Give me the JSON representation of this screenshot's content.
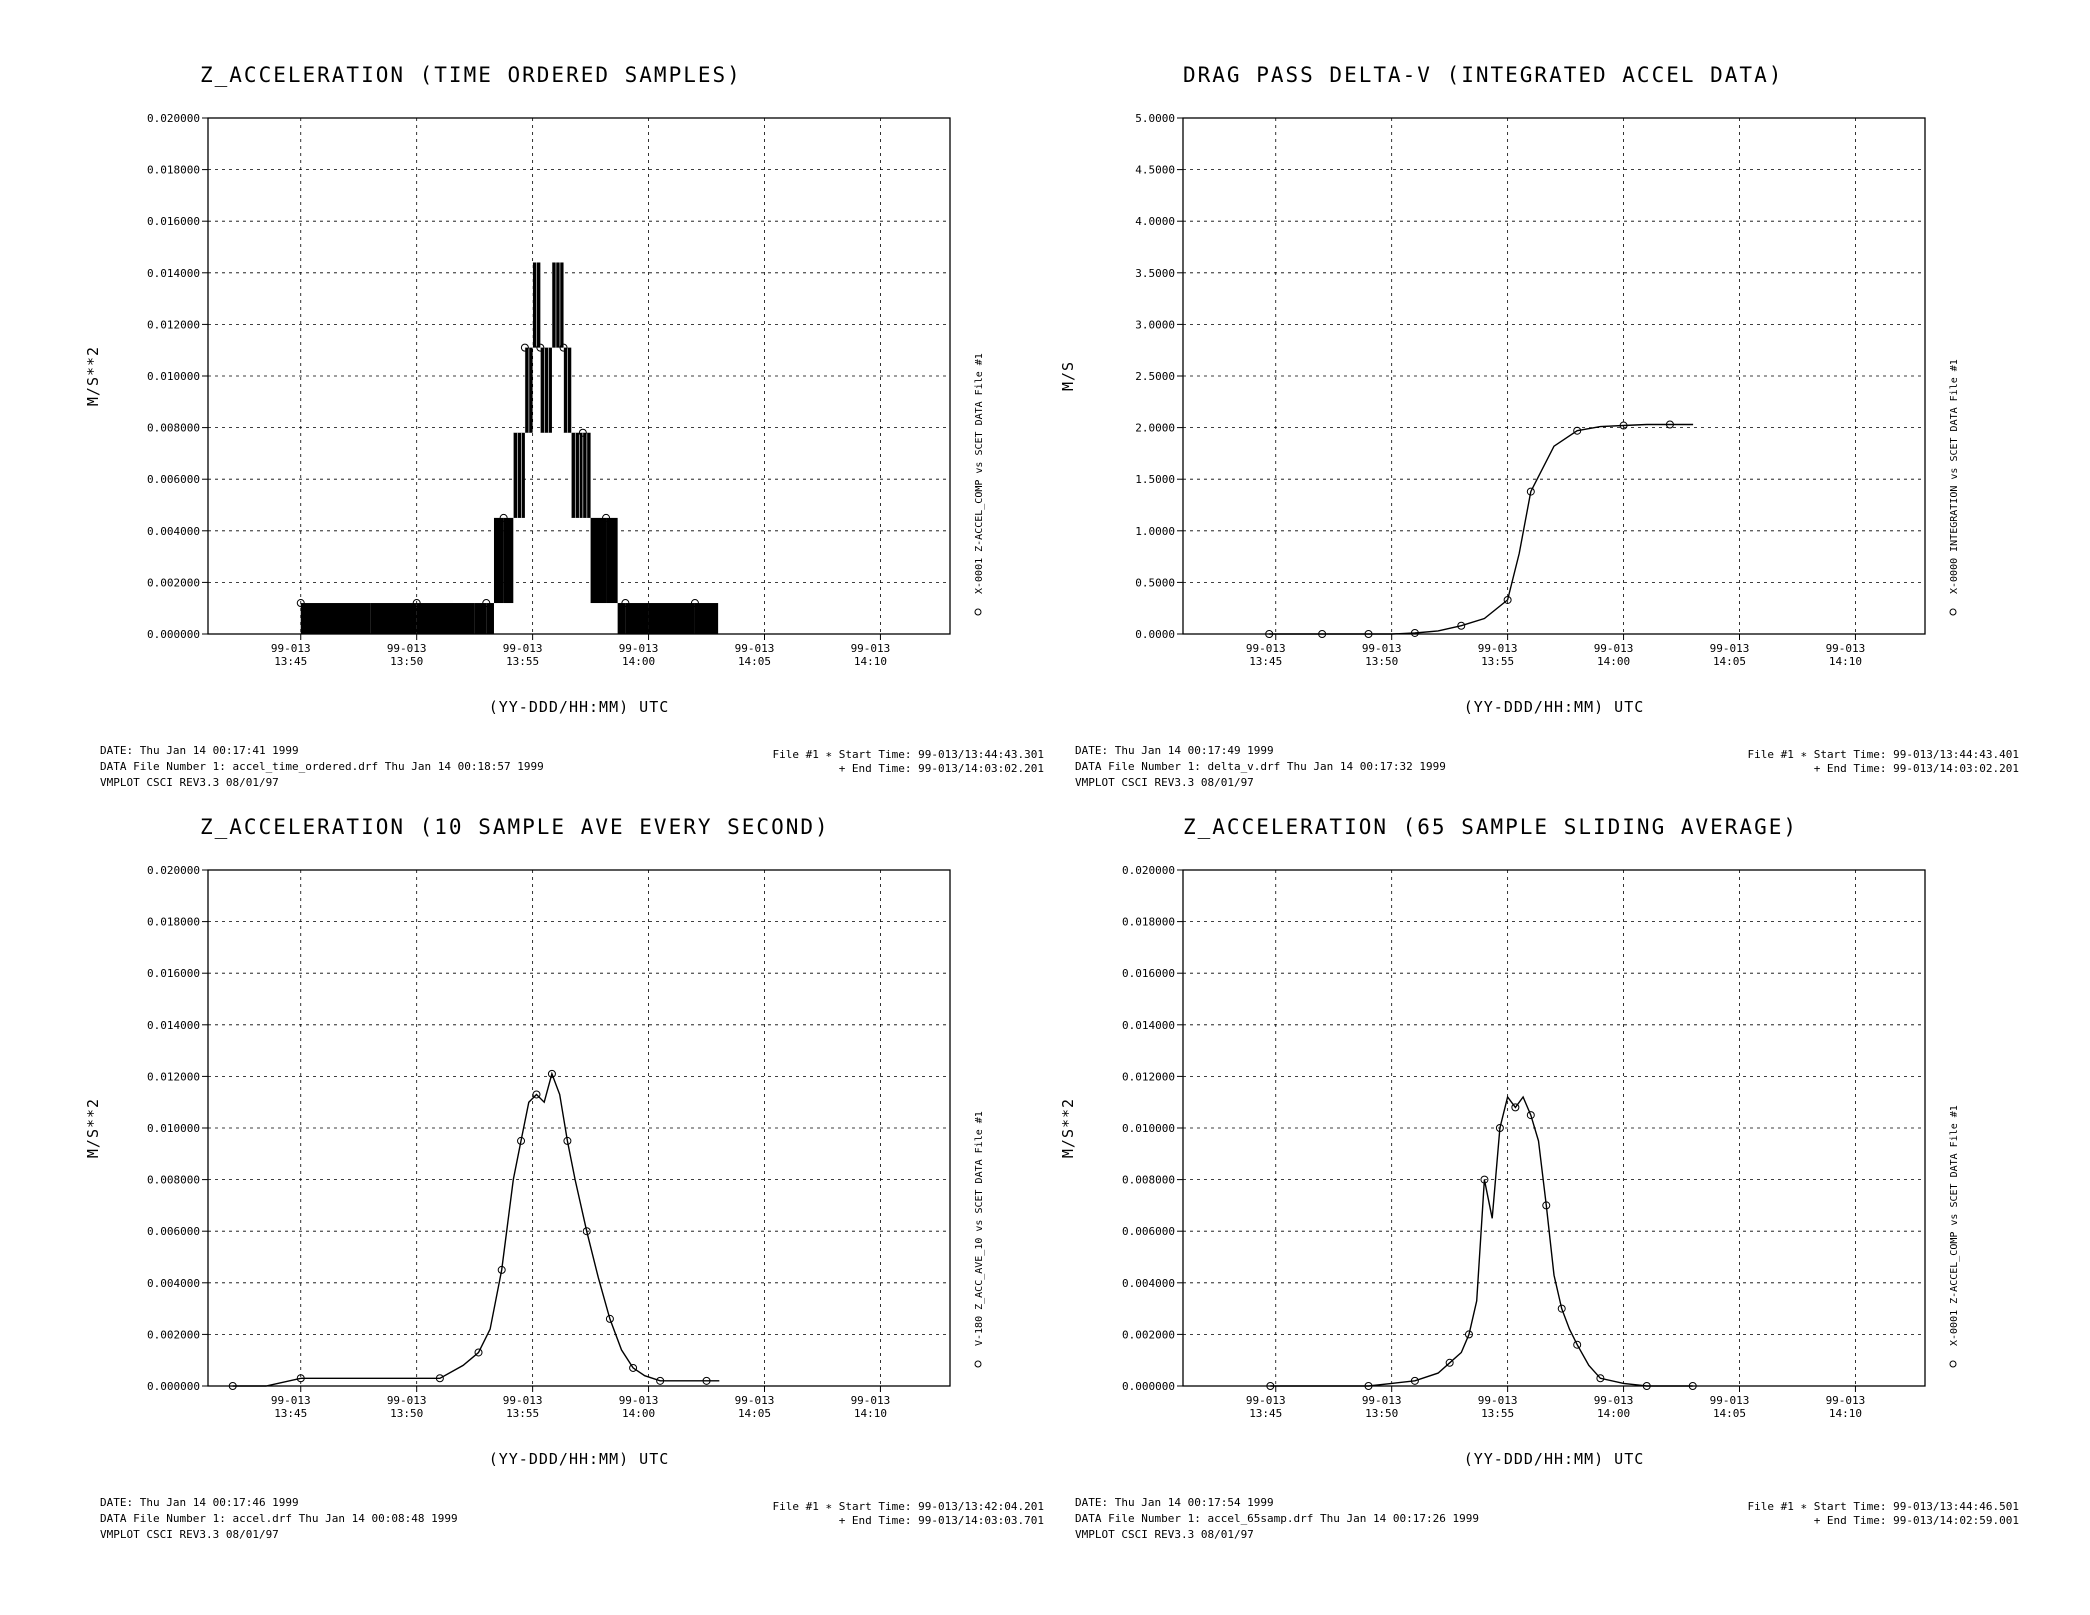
{
  "chart_data": [
    {
      "type": "line",
      "title": "Z_ACCELERATION (TIME ORDERED SAMPLES)",
      "xlabel": "(YY-DDD/HH:MM) UTC",
      "ylabel": "M/S**2",
      "ylim": [
        0,
        0.02
      ],
      "y_ticks": [
        "0.000000",
        "0.002000",
        "0.004000",
        "0.006000",
        "0.008000",
        "0.010000",
        "0.012000",
        "0.014000",
        "0.016000",
        "0.018000",
        "0.020000"
      ],
      "x_ticks": [
        {
          "date": "99-013",
          "time": "13:45"
        },
        {
          "date": "99-013",
          "time": "13:50"
        },
        {
          "date": "99-013",
          "time": "13:55"
        },
        {
          "date": "99-013",
          "time": "14:00"
        },
        {
          "date": "99-013",
          "time": "14:05"
        },
        {
          "date": "99-013",
          "time": "14:10"
        }
      ],
      "grid": true,
      "side_label": "X-0001 Z-ACCEL_COMP vs SCET  DATA File #1",
      "series": [
        {
          "x": [
            "13:45:00",
            "13:48:00",
            "13:50:00",
            "13:52:30",
            "13:53:00",
            "13:53:20",
            "13:53:45",
            "13:54:10",
            "13:54:40",
            "13:55:00",
            "13:55:20",
            "13:55:50",
            "13:56:20",
            "13:56:40",
            "13:57:10",
            "13:57:30",
            "13:58:10",
            "13:58:40",
            "13:59:00",
            "14:00:00",
            "14:02:00",
            "14:03:00"
          ],
          "y": [
            0.0012,
            0.0012,
            0.0012,
            0.0012,
            0.0012,
            0.0045,
            0.0045,
            0.0078,
            0.0111,
            0.0144,
            0.0111,
            0.0144,
            0.0111,
            0.0078,
            0.0078,
            0.0045,
            0.0045,
            0.0012,
            0.0012,
            0.0012,
            0.0012,
            0.0012
          ],
          "style": "filled-step"
        }
      ],
      "footer": {
        "date": "DATE: Thu Jan 14 00:17:41 1999",
        "data_file": "DATA File Number 1: accel_time_ordered.drf  Thu Jan 14 00:18:57 1999",
        "version": "VMPLOT CSCI REV3.3 08/01/97",
        "start": "File #1 ∗ Start Time: 99-013/13:44:43.301",
        "end": "+  End Time: 99-013/14:03:02.201"
      }
    },
    {
      "type": "line",
      "title": "DRAG PASS DELTA-V (INTEGRATED ACCEL DATA)",
      "xlabel": "(YY-DDD/HH:MM) UTC",
      "ylabel": "M/S",
      "ylim": [
        0,
        5
      ],
      "y_ticks": [
        "0.0000",
        "0.5000",
        "1.0000",
        "1.5000",
        "2.0000",
        "2.5000",
        "3.0000",
        "3.5000",
        "4.0000",
        "4.5000",
        "5.0000"
      ],
      "x_ticks": [
        {
          "date": "99-013",
          "time": "13:45"
        },
        {
          "date": "99-013",
          "time": "13:50"
        },
        {
          "date": "99-013",
          "time": "13:55"
        },
        {
          "date": "99-013",
          "time": "14:00"
        },
        {
          "date": "99-013",
          "time": "14:05"
        },
        {
          "date": "99-013",
          "time": "14:10"
        }
      ],
      "grid": true,
      "side_label": "X-0000 INTEGRATION vs SCET  DATA File #1",
      "series": [
        {
          "x": [
            "13:44:43",
            "13:46:00",
            "13:47:00",
            "13:48:00",
            "13:49:00",
            "13:50:00",
            "13:51:00",
            "13:52:00",
            "13:53:00",
            "13:54:00",
            "13:55:00",
            "13:55:30",
            "13:56:00",
            "13:57:00",
            "13:58:00",
            "13:59:00",
            "14:00:00",
            "14:01:00",
            "14:02:00",
            "14:03:00"
          ],
          "y": [
            0.0,
            0.0,
            0.0,
            0.0,
            0.0,
            0.0,
            0.01,
            0.03,
            0.08,
            0.15,
            0.33,
            0.78,
            1.38,
            1.82,
            1.97,
            2.01,
            2.02,
            2.03,
            2.03,
            2.03
          ],
          "style": "line"
        }
      ],
      "footer": {
        "date": "DATE: Thu Jan 14 00:17:49 1999",
        "data_file": "DATA File Number 1: delta_v.drf   Thu Jan 14 00:17:32 1999",
        "version": "VMPLOT CSCI REV3.3 08/01/97",
        "start": "File #1 ∗ Start Time: 99-013/13:44:43.401",
        "end": "+  End Time: 99-013/14:03:02.201"
      }
    },
    {
      "type": "line",
      "title": "Z_ACCELERATION (10 SAMPLE AVE EVERY SECOND)",
      "xlabel": "(YY-DDD/HH:MM) UTC",
      "ylabel": "M/S**2",
      "ylim": [
        0,
        0.02
      ],
      "y_ticks": [
        "0.000000",
        "0.002000",
        "0.004000",
        "0.006000",
        "0.008000",
        "0.010000",
        "0.012000",
        "0.014000",
        "0.016000",
        "0.018000",
        "0.020000"
      ],
      "x_ticks": [
        {
          "date": "99-013",
          "time": "13:45"
        },
        {
          "date": "99-013",
          "time": "13:50"
        },
        {
          "date": "99-013",
          "time": "13:55"
        },
        {
          "date": "99-013",
          "time": "14:00"
        },
        {
          "date": "99-013",
          "time": "14:05"
        },
        {
          "date": "99-013",
          "time": "14:10"
        }
      ],
      "grid": true,
      "side_label": "V-180 Z_ACC_AVE_10 vs SCET  DATA File #1",
      "series": [
        {
          "x": [
            "13:42:04",
            "13:43:30",
            "13:45:00",
            "13:49:00",
            "13:51:00",
            "13:52:00",
            "13:52:40",
            "13:53:10",
            "13:53:40",
            "13:54:10",
            "13:54:30",
            "13:54:50",
            "13:55:10",
            "13:55:30",
            "13:55:50",
            "13:56:10",
            "13:56:30",
            "13:56:50",
            "13:57:20",
            "13:57:50",
            "13:58:20",
            "13:58:50",
            "13:59:20",
            "13:59:50",
            "14:00:30",
            "14:01:30",
            "14:02:30",
            "14:03:03"
          ],
          "y": [
            0.0,
            0.0,
            0.0003,
            0.0003,
            0.0003,
            0.0008,
            0.0013,
            0.0022,
            0.0045,
            0.008,
            0.0095,
            0.011,
            0.0113,
            0.011,
            0.0121,
            0.0113,
            0.0095,
            0.008,
            0.006,
            0.0042,
            0.0026,
            0.0014,
            0.0007,
            0.0004,
            0.0002,
            0.0002,
            0.0002,
            0.0002
          ],
          "style": "line"
        }
      ],
      "footer": {
        "date": "DATE: Thu Jan 14 00:17:46 1999",
        "data_file": "DATA File Number 1: accel.drf   Thu Jan 14 00:08:48 1999",
        "version": "VMPLOT CSCI REV3.3 08/01/97",
        "start": "File #1 ∗ Start Time: 99-013/13:42:04.201",
        "end": "+  End Time: 99-013/14:03:03.701"
      }
    },
    {
      "type": "line",
      "title": "Z_ACCELERATION (65 SAMPLE SLIDING AVERAGE)",
      "xlabel": "(YY-DDD/HH:MM) UTC",
      "ylabel": "M/S**2",
      "ylim": [
        0,
        0.02
      ],
      "y_ticks": [
        "0.000000",
        "0.002000",
        "0.004000",
        "0.006000",
        "0.008000",
        "0.010000",
        "0.012000",
        "0.014000",
        "0.016000",
        "0.018000",
        "0.020000"
      ],
      "x_ticks": [
        {
          "date": "99-013",
          "time": "13:45"
        },
        {
          "date": "99-013",
          "time": "13:50"
        },
        {
          "date": "99-013",
          "time": "13:55"
        },
        {
          "date": "99-013",
          "time": "14:00"
        },
        {
          "date": "99-013",
          "time": "14:05"
        },
        {
          "date": "99-013",
          "time": "14:10"
        }
      ],
      "grid": true,
      "side_label": "X-0001 Z-ACCEL_COMP vs SCET  DATA File #1",
      "series": [
        {
          "x": [
            "13:44:46",
            "13:47:00",
            "13:49:00",
            "13:50:00",
            "13:51:00",
            "13:52:00",
            "13:52:30",
            "13:53:00",
            "13:53:20",
            "13:53:40",
            "13:54:00",
            "13:54:20",
            "13:54:40",
            "13:55:00",
            "13:55:20",
            "13:55:40",
            "13:56:00",
            "13:56:20",
            "13:56:40",
            "13:57:00",
            "13:57:20",
            "13:57:40",
            "13:58:00",
            "13:58:30",
            "13:59:00",
            "14:00:00",
            "14:01:00",
            "14:02:00",
            "14:02:59"
          ],
          "y": [
            0.0,
            0.0,
            0.0,
            0.0001,
            0.0002,
            0.0005,
            0.0009,
            0.0013,
            0.002,
            0.0033,
            0.008,
            0.0065,
            0.01,
            0.0112,
            0.0108,
            0.0112,
            0.0105,
            0.0095,
            0.007,
            0.0043,
            0.003,
            0.0022,
            0.0016,
            0.0008,
            0.0003,
            0.0001,
            0.0,
            0.0,
            0.0
          ],
          "style": "line"
        }
      ],
      "footer": {
        "date": "DATE: Thu Jan 14 00:17:54 1999",
        "data_file": "DATA File Number 1: accel_65samp.drf  Thu Jan 14 00:17:26 1999",
        "version": "VMPLOT CSCI REV3.3 08/01/97",
        "start": "File #1 ∗ Start Time: 99-013/13:44:46.501",
        "end": "+  End Time: 99-013/14:02:59.001"
      }
    }
  ]
}
